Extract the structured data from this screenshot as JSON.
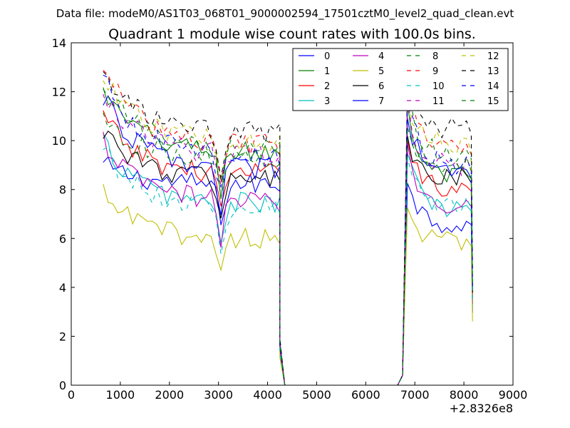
{
  "header": {
    "file_line": "Data file: modeM0/AS1T03_068T01_9000002594_17501cztM0_level2_quad_clean.evt"
  },
  "chart_data": {
    "type": "line",
    "title": "Quadrant 1 module wise count rates with 100.0s bins.",
    "xlabel": "",
    "ylabel": "",
    "x_offset_label": "+2.8326e8",
    "xlim": [
      0,
      9000
    ],
    "ylim": [
      0,
      14
    ],
    "xticks": [
      0,
      1000,
      2000,
      3000,
      4000,
      5000,
      6000,
      7000,
      8000,
      9000
    ],
    "yticks": [
      0,
      2,
      4,
      6,
      8,
      10,
      12,
      14
    ],
    "xtick_labels": [
      "0",
      "1000",
      "2000",
      "3000",
      "4000",
      "5000",
      "6000",
      "7000",
      "8000",
      "9000"
    ],
    "ytick_labels": [
      "0",
      "2",
      "4",
      "6",
      "8",
      "10",
      "12",
      "14"
    ],
    "grid": false,
    "legend": {
      "placement": "top-right",
      "ncol": 4
    },
    "segments": {
      "first": {
        "x_start": 650,
        "x_end": 4200,
        "step": 100
      },
      "second": {
        "x_start": 6850,
        "x_end": 8150,
        "step": 100
      },
      "drop_points": [
        [
          4250,
          1.5
        ],
        [
          4350,
          0
        ]
      ],
      "rise_points": [
        [
          6650,
          0
        ],
        [
          6750,
          0.4
        ]
      ],
      "end_drop_x": 8175
    },
    "series": [
      {
        "name": "0",
        "color": "#0000ff",
        "dash": "solid",
        "level1": 8.2,
        "level2": 6.6,
        "start": 9.0
      },
      {
        "name": "1",
        "color": "#008000",
        "dash": "solid",
        "level1": 9.5,
        "level2": 8.5,
        "start": 12.0
      },
      {
        "name": "2",
        "color": "#ff0000",
        "dash": "solid",
        "level1": 8.6,
        "level2": 8.0,
        "start": 11.0
      },
      {
        "name": "3",
        "color": "#00bfbf",
        "dash": "solid",
        "level1": 7.4,
        "level2": 7.2,
        "start": 10.0
      },
      {
        "name": "4",
        "color": "#bf00bf",
        "dash": "solid",
        "level1": 7.5,
        "level2": 7.4,
        "start": 10.0
      },
      {
        "name": "5",
        "color": "#bfbf00",
        "dash": "solid",
        "level1": 6.0,
        "level2": 5.8,
        "start": 7.8
      },
      {
        "name": "6",
        "color": "#000000",
        "dash": "solid",
        "level1": 8.4,
        "level2": 8.4,
        "start": 10.5
      },
      {
        "name": "7",
        "color": "#0000ff",
        "dash": "solid",
        "level1": 8.8,
        "level2": 8.6,
        "start": 11.8
      },
      {
        "name": "8",
        "color": "#008000",
        "dash": "dashed",
        "level1": 9.6,
        "level2": 9.4,
        "start": 12.4
      },
      {
        "name": "9",
        "color": "#ff0000",
        "dash": "dashed",
        "level1": 9.8,
        "level2": 9.6,
        "start": 13.1
      },
      {
        "name": "10",
        "color": "#00bfbf",
        "dash": "dashed",
        "level1": 7.2,
        "level2": 7.4,
        "start": 9.8
      },
      {
        "name": "11",
        "color": "#bf00bf",
        "dash": "dashed",
        "level1": 9.4,
        "level2": 9.0,
        "start": 12.0
      },
      {
        "name": "12",
        "color": "#bfbf00",
        "dash": "dashed",
        "level1": 10.0,
        "level2": 9.8,
        "start": 12.5
      },
      {
        "name": "13",
        "color": "#000000",
        "dash": "dashed",
        "level1": 10.3,
        "level2": 10.5,
        "start": 12.8
      },
      {
        "name": "14",
        "color": "#0000ff",
        "dash": "dashed",
        "level1": 9.3,
        "level2": 9.0,
        "start": 12.6
      },
      {
        "name": "15",
        "color": "#008000",
        "dash": "dashed",
        "level1": 9.2,
        "level2": 9.0,
        "start": 11.0
      }
    ]
  }
}
